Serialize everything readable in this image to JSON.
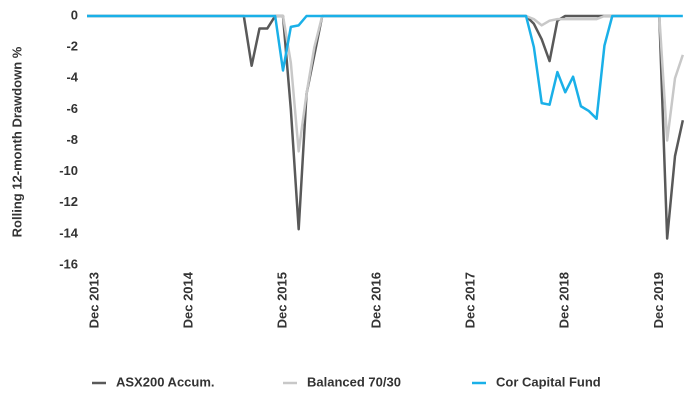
{
  "chart_data": {
    "type": "line",
    "y_label": "Rolling 12-month Drawdown %",
    "categories": [
      null,
      "Dec 2013",
      null,
      null,
      null,
      null,
      null,
      null,
      null,
      null,
      null,
      null,
      null,
      "Dec 2014",
      null,
      null,
      null,
      null,
      null,
      null,
      null,
      null,
      null,
      null,
      null,
      "Dec 2015",
      null,
      null,
      null,
      null,
      null,
      null,
      null,
      null,
      null,
      null,
      null,
      "Dec 2016",
      null,
      null,
      null,
      null,
      null,
      null,
      null,
      null,
      null,
      null,
      null,
      "Dec 2017",
      null,
      null,
      null,
      null,
      null,
      null,
      null,
      null,
      null,
      null,
      null,
      "Dec 2018",
      null,
      null,
      null,
      null,
      null,
      null,
      null,
      null,
      null,
      null,
      null,
      "Dec 2019",
      null,
      null,
      null
    ],
    "series": [
      {
        "name": "ASX200 Accum.",
        "color": "#595959",
        "values": [
          0,
          0,
          0,
          0,
          0,
          0,
          0,
          0,
          0,
          0,
          0,
          0,
          0,
          0,
          0,
          0,
          0,
          0,
          0,
          0,
          0,
          -3.2,
          -0.8,
          -0.8,
          0,
          0,
          -6,
          -13.7,
          -5,
          -2.5,
          0,
          0,
          0,
          0,
          0,
          0,
          0,
          0,
          0,
          0,
          0,
          0,
          0,
          0,
          0,
          0,
          0,
          0,
          0,
          0,
          0,
          0,
          0,
          0,
          0,
          0,
          0,
          -0.5,
          -1.5,
          -2.9,
          -0.3,
          0,
          0,
          0,
          0,
          0,
          0,
          0,
          0,
          0,
          0,
          0,
          0,
          0,
          -14.3,
          -9,
          -6.7
        ]
      },
      {
        "name": "Balanced 70/30",
        "color": "#c8c8c8",
        "values": [
          0,
          0,
          0,
          0,
          0,
          0,
          0,
          0,
          0,
          0,
          0,
          0,
          0,
          0,
          0,
          0,
          0,
          0,
          0,
          0,
          0,
          0,
          0,
          0,
          0,
          0,
          -3,
          -8.7,
          -5,
          -2,
          0,
          0,
          0,
          0,
          0,
          0,
          0,
          0,
          0,
          0,
          0,
          0,
          0,
          0,
          0,
          0,
          0,
          0,
          0,
          0,
          0,
          0,
          0,
          0,
          0,
          0,
          0,
          -0.2,
          -0.6,
          -0.3,
          -0.2,
          -0.2,
          -0.2,
          -0.2,
          -0.2,
          -0.2,
          0,
          0,
          0,
          0,
          0,
          0,
          0,
          0,
          -8,
          -4,
          -2.5
        ]
      },
      {
        "name": "Cor Capital Fund",
        "color": "#1ab0e8",
        "values": [
          0,
          0,
          0,
          0,
          0,
          0,
          0,
          0,
          0,
          0,
          0,
          0,
          0,
          0,
          0,
          0,
          0,
          0,
          0,
          0,
          0,
          0,
          0,
          0,
          0,
          -3.5,
          -0.7,
          -0.6,
          0,
          0,
          0,
          0,
          0,
          0,
          0,
          0,
          0,
          0,
          0,
          0,
          0,
          0,
          0,
          0,
          0,
          0,
          0,
          0,
          0,
          0,
          0,
          0,
          0,
          0,
          0,
          0,
          0,
          -2,
          -5.6,
          -5.7,
          -3.6,
          -4.9,
          -3.9,
          -5.8,
          -6.1,
          -6.6,
          -1.9,
          0,
          0,
          0,
          0,
          0,
          0,
          0,
          0,
          0,
          0
        ]
      }
    ],
    "ylim": [
      -16,
      0
    ],
    "yticks": [
      0,
      -2,
      -4,
      -6,
      -8,
      -10,
      -12,
      -14,
      -16
    ],
    "legend": "bottom"
  }
}
